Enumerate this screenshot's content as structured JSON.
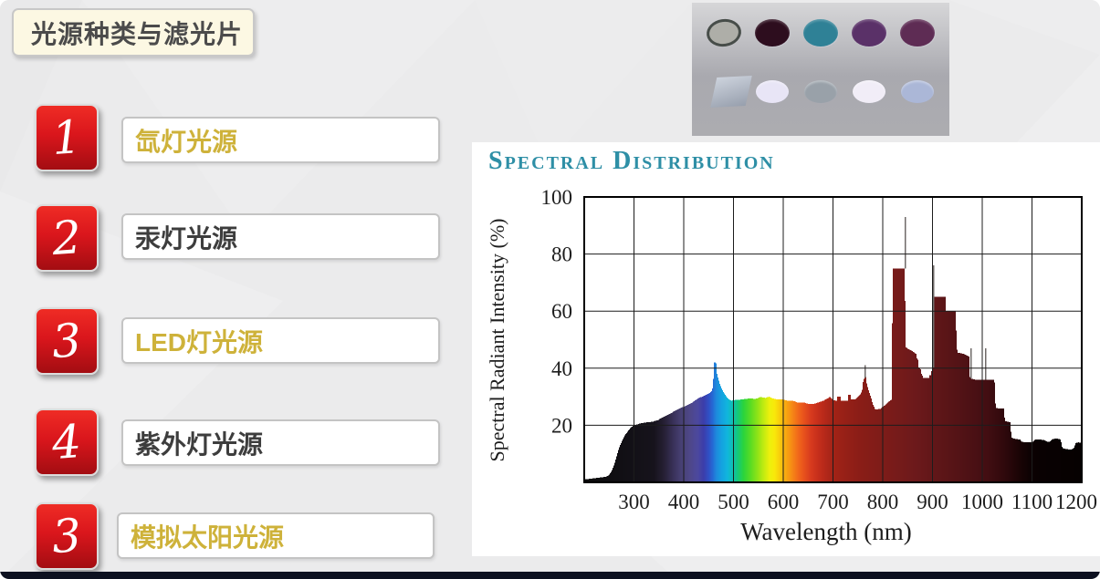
{
  "title": "光源种类与滤光片",
  "items": [
    {
      "number": "1",
      "label": "氙灯光源",
      "color": "#ceb23a"
    },
    {
      "number": "2",
      "label": "汞灯光源",
      "color": "#3d3d3d"
    },
    {
      "number": "3",
      "label": "LED灯光源",
      "color": "#ceb23a"
    },
    {
      "number": "4",
      "label": "紫外灯光源",
      "color": "#3d3d3d"
    },
    {
      "number": "3",
      "label": "模拟太阳光源",
      "color": "#ceb23a"
    }
  ],
  "filters_image": {
    "top_row": [
      {
        "name": "gray-filter-with-ring",
        "color": "#aeaea8",
        "ring": "#474d49"
      },
      {
        "name": "dark-maroon-filter",
        "color": "#2d0d1e"
      },
      {
        "name": "teal-filter",
        "color": "#2f8196"
      },
      {
        "name": "purple-filter",
        "color": "#5a3168"
      },
      {
        "name": "plum-filter",
        "color": "#5e2c54"
      }
    ],
    "bottom_row": [
      {
        "name": "glass-slide-square",
        "color": "#b9c0cf",
        "shape": "square"
      },
      {
        "name": "pale-lavender-filter",
        "color": "#e8e5f6"
      },
      {
        "name": "gray-filter",
        "color": "#99a1a9"
      },
      {
        "name": "white-filter",
        "color": "#f1edf7"
      },
      {
        "name": "periwinkle-filter",
        "color": "#abb7d7"
      }
    ]
  },
  "chart_data": {
    "type": "area",
    "title": "Spectral Distribution",
    "xlabel": "Wavelength (nm)",
    "ylabel": "Spectral Radiant Intensity (%)",
    "xlim": [
      200,
      1200
    ],
    "ylim": [
      0,
      100
    ],
    "x_ticks": [
      300,
      400,
      500,
      600,
      700,
      800,
      900,
      1000,
      1100,
      1200
    ],
    "y_ticks": [
      20,
      40,
      60,
      80,
      100
    ],
    "grid": true,
    "points": [
      [
        200,
        1
      ],
      [
        245,
        2
      ],
      [
        250,
        2.5
      ],
      [
        255,
        4
      ],
      [
        260,
        6
      ],
      [
        265,
        9
      ],
      [
        270,
        12
      ],
      [
        276,
        14.5
      ],
      [
        282,
        16.5
      ],
      [
        288,
        18
      ],
      [
        294,
        19.2
      ],
      [
        300,
        20
      ],
      [
        312,
        20.6
      ],
      [
        324,
        21
      ],
      [
        336,
        21.2
      ],
      [
        348,
        21.8
      ],
      [
        360,
        23
      ],
      [
        372,
        24
      ],
      [
        384,
        25.2
      ],
      [
        396,
        26.2
      ],
      [
        404,
        26.8
      ],
      [
        410,
        27.3
      ],
      [
        416,
        27.8
      ],
      [
        422,
        28.6
      ],
      [
        428,
        29.3
      ],
      [
        434,
        29.8
      ],
      [
        440,
        30.2
      ],
      [
        446,
        30.8
      ],
      [
        452,
        31.3
      ],
      [
        456,
        32
      ],
      [
        459,
        33.5
      ],
      [
        461,
        42
      ],
      [
        465,
        42
      ],
      [
        467,
        38
      ],
      [
        470,
        36
      ],
      [
        473,
        34.2
      ],
      [
        476,
        33
      ],
      [
        480,
        31.6
      ],
      [
        485,
        30.2
      ],
      [
        490,
        29.2
      ],
      [
        496,
        28.6
      ],
      [
        504,
        28.9
      ],
      [
        514,
        29
      ],
      [
        524,
        29.2
      ],
      [
        534,
        29.5
      ],
      [
        544,
        29.2
      ],
      [
        554,
        29.9
      ],
      [
        564,
        29.6
      ],
      [
        571,
        30
      ],
      [
        579,
        29.4
      ],
      [
        589,
        29
      ],
      [
        600,
        29
      ],
      [
        609,
        28.6
      ],
      [
        619,
        28.6
      ],
      [
        629,
        28
      ],
      [
        641,
        28
      ],
      [
        651,
        27.5
      ],
      [
        661,
        27.5
      ],
      [
        671,
        28
      ],
      [
        681,
        28.6
      ],
      [
        689,
        29.4
      ],
      [
        694,
        30
      ],
      [
        699,
        29
      ],
      [
        705,
        28.6
      ],
      [
        708.3,
        28.6
      ],
      [
        708.9,
        30
      ],
      [
        715,
        30
      ],
      [
        715.6,
        28.6
      ],
      [
        726,
        28.6
      ],
      [
        729.4,
        28.6
      ],
      [
        730,
        30.6
      ],
      [
        736,
        30.6
      ],
      [
        736.6,
        29
      ],
      [
        740,
        29
      ],
      [
        746,
        29.2
      ],
      [
        751,
        30.2
      ],
      [
        756,
        31
      ],
      [
        759,
        32.5
      ],
      [
        761,
        36
      ],
      [
        766,
        37
      ],
      [
        768,
        34.5
      ],
      [
        772,
        32
      ],
      [
        776,
        30
      ],
      [
        780,
        27.5
      ],
      [
        784,
        26
      ],
      [
        784.8,
        25.5
      ],
      [
        796,
        25.8
      ],
      [
        800,
        26.5
      ],
      [
        805,
        27
      ],
      [
        810,
        28
      ],
      [
        816,
        28.8
      ],
      [
        818.8,
        29
      ],
      [
        819.6,
        75
      ],
      [
        844.5,
        75
      ],
      [
        845.6,
        47.5
      ],
      [
        853,
        46.5
      ],
      [
        860,
        46
      ],
      [
        866,
        45
      ],
      [
        868,
        45
      ],
      [
        869,
        43
      ],
      [
        871,
        43
      ],
      [
        871.8,
        40.3
      ],
      [
        876,
        40
      ],
      [
        876.8,
        38
      ],
      [
        879.5,
        38
      ],
      [
        880.3,
        36.5
      ],
      [
        893,
        36.6
      ],
      [
        893.8,
        37.5
      ],
      [
        897,
        37.6
      ],
      [
        897.8,
        39
      ],
      [
        900.5,
        39
      ],
      [
        901.3,
        41
      ],
      [
        902.3,
        41
      ],
      [
        902.9,
        65
      ],
      [
        926,
        65
      ],
      [
        927,
        60
      ],
      [
        946,
        60
      ],
      [
        948,
        52
      ],
      [
        949.8,
        45.5
      ],
      [
        958,
        45.2
      ],
      [
        966,
        44.8
      ],
      [
        974,
        44
      ],
      [
        975.3,
        36.5
      ],
      [
        986,
        36
      ],
      [
        1000,
        36
      ],
      [
        1012,
        36
      ],
      [
        1024.5,
        36
      ],
      [
        1025.8,
        31
      ],
      [
        1027,
        26
      ],
      [
        1044,
        25.8
      ],
      [
        1045.3,
        21.5
      ],
      [
        1057,
        21
      ],
      [
        1058.3,
        15.8
      ],
      [
        1066,
        15.2
      ],
      [
        1076,
        15
      ],
      [
        1080,
        14.2
      ],
      [
        1090,
        14
      ],
      [
        1102,
        14.2
      ],
      [
        1106,
        15
      ],
      [
        1118,
        15
      ],
      [
        1125,
        14.8
      ],
      [
        1131,
        14.2
      ],
      [
        1136,
        14.2
      ],
      [
        1140,
        15
      ],
      [
        1148,
        15.4
      ],
      [
        1155,
        15.2
      ],
      [
        1158,
        14.8
      ],
      [
        1161,
        12
      ],
      [
        1170,
        11.6
      ],
      [
        1180,
        11.5
      ],
      [
        1184,
        12
      ],
      [
        1188,
        13.8
      ],
      [
        1194,
        14
      ],
      [
        1200,
        13.8
      ]
    ],
    "spikes": [
      [
        764,
        41
      ],
      [
        844,
        93
      ],
      [
        901,
        76
      ],
      [
        977,
        47
      ],
      [
        1006,
        47
      ]
    ]
  }
}
